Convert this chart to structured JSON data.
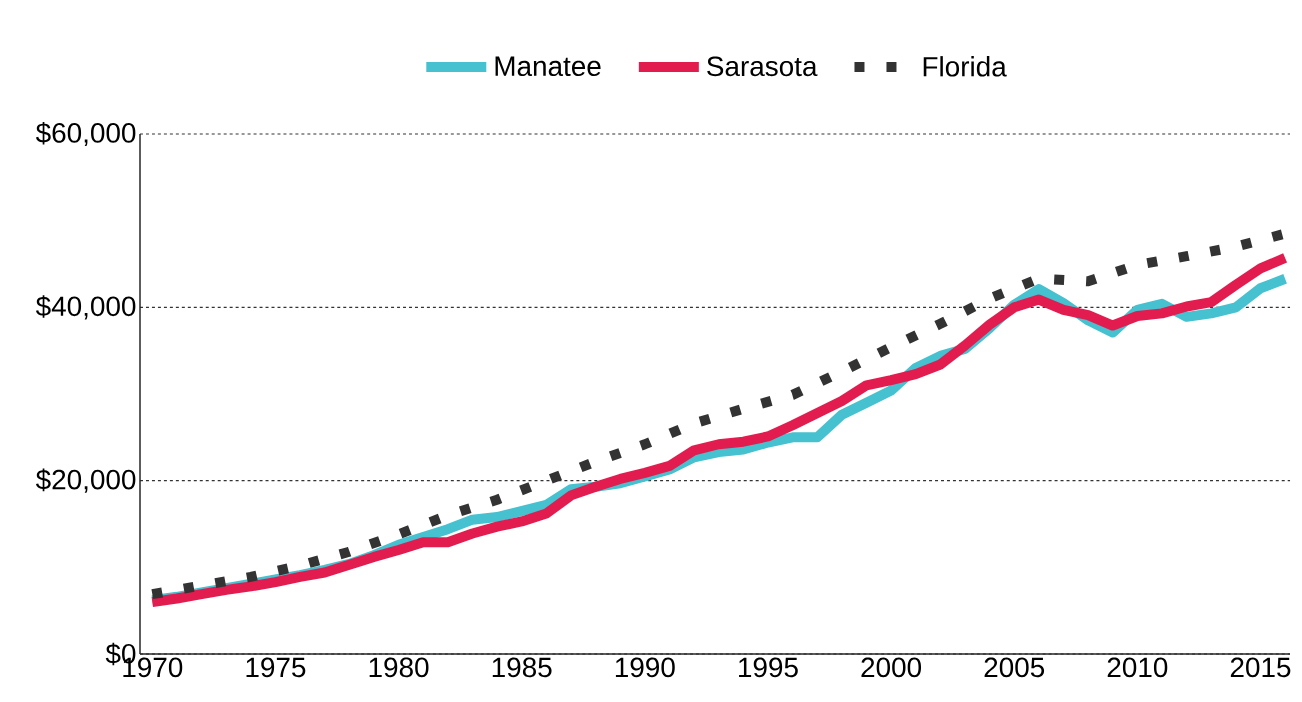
{
  "chart_data": {
    "type": "line",
    "x": [
      1970,
      1971,
      1972,
      1973,
      1974,
      1975,
      1976,
      1977,
      1978,
      1979,
      1980,
      1981,
      1982,
      1983,
      1984,
      1985,
      1986,
      1987,
      1988,
      1989,
      1990,
      1991,
      1992,
      1993,
      1994,
      1995,
      1996,
      1997,
      1998,
      1999,
      2000,
      2001,
      2002,
      2003,
      2004,
      2005,
      2006,
      2007,
      2008,
      2009,
      2010,
      2011,
      2012,
      2013,
      2014,
      2015,
      2016
    ],
    "series": [
      {
        "name": "Manatee",
        "color": "#45c1cf",
        "line_style": "solid",
        "values": [
          6200,
          6600,
          7100,
          7600,
          8100,
          8600,
          9100,
          9700,
          10400,
          11400,
          12600,
          13500,
          14400,
          15500,
          15800,
          16500,
          17200,
          19000,
          19300,
          19700,
          20500,
          21300,
          22700,
          23300,
          23600,
          24400,
          25000,
          25000,
          27600,
          29000,
          30400,
          33000,
          34400,
          35200,
          37600,
          40300,
          42100,
          40500,
          38500,
          37100,
          39700,
          40400,
          38900,
          39300,
          40000,
          42200,
          43300
        ]
      },
      {
        "name": "Sarasota",
        "color": "#e31c4f",
        "line_style": "solid",
        "values": [
          6000,
          6400,
          6900,
          7400,
          7800,
          8300,
          8900,
          9400,
          10300,
          11200,
          12000,
          12900,
          12900,
          13900,
          14700,
          15300,
          16200,
          18300,
          19300,
          20200,
          20900,
          21700,
          23500,
          24200,
          24500,
          25100,
          26400,
          27800,
          29200,
          31000,
          31600,
          32300,
          33400,
          35600,
          38000,
          40000,
          40900,
          39700,
          39100,
          37900,
          39000,
          39300,
          40100,
          40600,
          42600,
          44500,
          45700
        ]
      },
      {
        "name": "Florida",
        "color": "#333333",
        "line_style": "dotted",
        "x": [
          1970,
          1972,
          1974,
          1976,
          1978,
          1980,
          1982,
          1984,
          1986,
          1988,
          1990,
          1992,
          1994,
          1996,
          1998,
          2000,
          2002,
          2004,
          2006,
          2008,
          2010,
          2012,
          2014,
          2016
        ],
        "values": [
          6900,
          7900,
          8900,
          10200,
          11800,
          13800,
          16000,
          17800,
          20000,
          22200,
          24200,
          26600,
          28300,
          29900,
          32600,
          35400,
          38100,
          41000,
          43300,
          43000,
          44900,
          45900,
          47000,
          48500
        ]
      }
    ],
    "xlim": [
      1969.5,
      2016.2
    ],
    "ylim": [
      0,
      60000
    ],
    "xticks": [
      1970,
      1975,
      1980,
      1985,
      1990,
      1995,
      2000,
      2005,
      2010,
      2015
    ],
    "yticks": [
      {
        "value": 0,
        "label": "$0"
      },
      {
        "value": 20000,
        "label": "$20,000"
      },
      {
        "value": 40000,
        "label": "$40,000"
      },
      {
        "value": 60000,
        "label": "$60,000"
      }
    ],
    "grid": "y",
    "legend": "top",
    "marker": "none"
  }
}
